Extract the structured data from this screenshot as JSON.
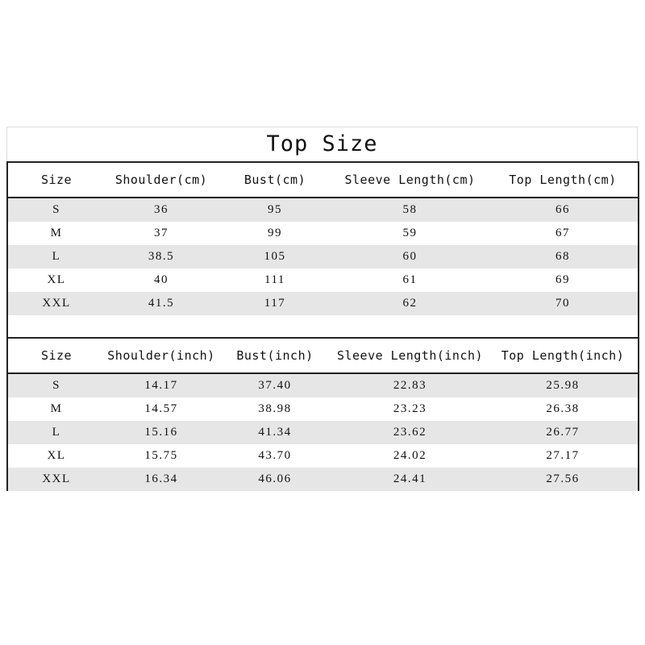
{
  "title": "Top Size",
  "cm_table": {
    "headers": [
      "Size",
      "Shoulder(cm)",
      "Bust(cm)",
      "Sleeve Length(cm)",
      "Top Length(cm)"
    ],
    "rows": [
      [
        "S",
        "36",
        "95",
        "58",
        "66"
      ],
      [
        "M",
        "37",
        "99",
        "59",
        "67"
      ],
      [
        "L",
        "38.5",
        "105",
        "60",
        "68"
      ],
      [
        "XL",
        "40",
        "111",
        "61",
        "69"
      ],
      [
        "XXL",
        "41.5",
        "117",
        "62",
        "70"
      ]
    ]
  },
  "inch_table": {
    "headers": [
      "Size",
      "Shoulder(inch)",
      "Bust(inch)",
      "Sleeve Length(inch)",
      "Top Length(inch)"
    ],
    "rows": [
      [
        "S",
        "14.17",
        "37.40",
        "22.83",
        "25.98"
      ],
      [
        "M",
        "14.57",
        "38.98",
        "23.23",
        "26.38"
      ],
      [
        "L",
        "15.16",
        "41.34",
        "23.62",
        "26.77"
      ],
      [
        "XL",
        "15.75",
        "43.70",
        "24.02",
        "27.17"
      ],
      [
        "XXL",
        "16.34",
        "46.06",
        "24.41",
        "27.56"
      ]
    ]
  },
  "colors": {
    "stripe": "#e6e6e6",
    "border": "#222222"
  }
}
